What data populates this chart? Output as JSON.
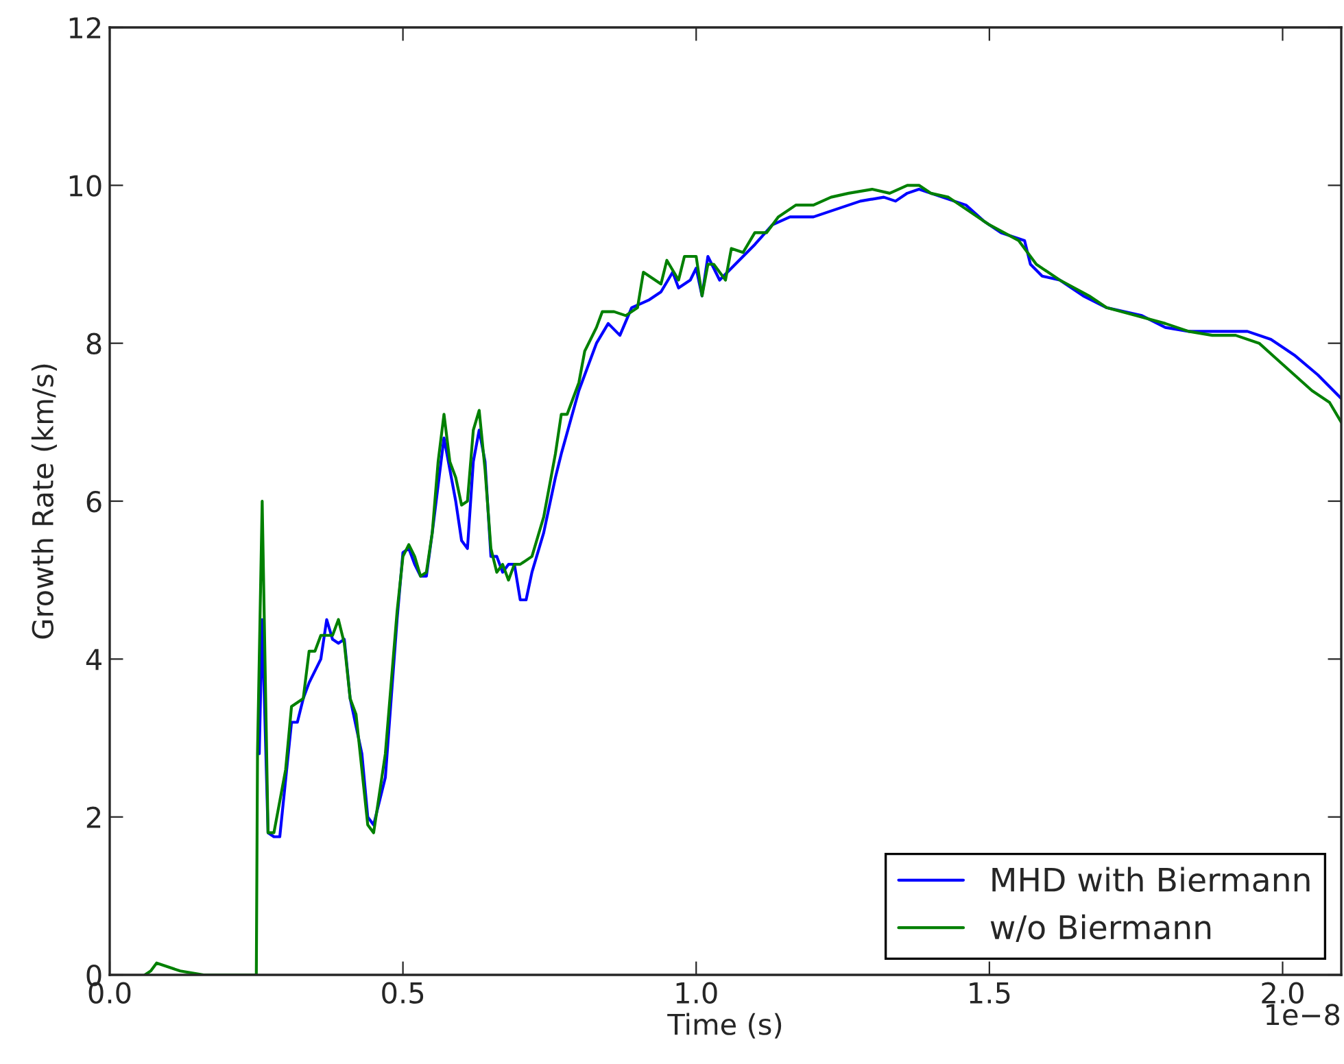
{
  "chart_data": {
    "type": "line",
    "xlabel": "Time (s)",
    "ylabel": "Growth Rate (km/s)",
    "annotations": [
      "1e−8"
    ],
    "xlim": [
      0,
      2.1
    ],
    "xticks": [
      {
        "value": 0,
        "label": "0.0"
      },
      0.5,
      {
        "value": 1.0,
        "label": "1.0"
      },
      1.5,
      {
        "value": 2.0,
        "label": "2.0"
      }
    ],
    "ylim": [
      0,
      12
    ],
    "yticks": [
      0,
      2,
      4,
      6,
      8,
      10,
      12
    ],
    "grid": false,
    "legend": "bottom right",
    "marker": "none",
    "line_style": "solid",
    "series": [
      {
        "name": "MHD with Biermann",
        "color": "#0000ff",
        "x": [
          0.255,
          0.26,
          0.27,
          0.28,
          0.29,
          0.31,
          0.32,
          0.33,
          0.34,
          0.36,
          0.37,
          0.38,
          0.39,
          0.4,
          0.41,
          0.43,
          0.44,
          0.45,
          0.47,
          0.49,
          0.5,
          0.51,
          0.52,
          0.53,
          0.54,
          0.55,
          0.57,
          0.58,
          0.59,
          0.6,
          0.61,
          0.62,
          0.63,
          0.64,
          0.65,
          0.66,
          0.67,
          0.68,
          0.69,
          0.7,
          0.71,
          0.72,
          0.74,
          0.76,
          0.77,
          0.8,
          0.83,
          0.85,
          0.87,
          0.89,
          0.92,
          0.94,
          0.96,
          0.97,
          0.99,
          1.0,
          1.01,
          1.02,
          1.04,
          1.06,
          1.08,
          1.1,
          1.13,
          1.16,
          1.2,
          1.24,
          1.28,
          1.32,
          1.34,
          1.36,
          1.38,
          1.42,
          1.46,
          1.49,
          1.52,
          1.56,
          1.57,
          1.59,
          1.62,
          1.66,
          1.7,
          1.73,
          1.76,
          1.8,
          1.84,
          1.9,
          1.94,
          1.98,
          2.02,
          2.06,
          2.1
        ],
        "values": [
          2.8,
          4.5,
          1.8,
          1.75,
          1.75,
          3.2,
          3.2,
          3.5,
          3.7,
          4.0,
          4.5,
          4.25,
          4.2,
          4.25,
          3.5,
          2.8,
          2.0,
          1.9,
          2.5,
          4.5,
          5.35,
          5.4,
          5.2,
          5.05,
          5.05,
          5.6,
          6.8,
          6.4,
          6.0,
          5.5,
          5.4,
          6.5,
          6.9,
          6.5,
          5.3,
          5.3,
          5.1,
          5.2,
          5.2,
          4.75,
          4.75,
          5.1,
          5.6,
          6.3,
          6.6,
          7.4,
          8.0,
          8.25,
          8.1,
          8.45,
          8.55,
          8.65,
          8.9,
          8.7,
          8.8,
          8.95,
          8.6,
          9.1,
          8.8,
          8.95,
          9.1,
          9.25,
          9.5,
          9.6,
          9.6,
          9.7,
          9.8,
          9.85,
          9.8,
          9.9,
          9.95,
          9.85,
          9.75,
          9.55,
          9.4,
          9.3,
          9.0,
          8.85,
          8.8,
          8.6,
          8.45,
          8.4,
          8.35,
          8.2,
          8.15,
          8.15,
          8.15,
          8.05,
          7.85,
          7.6,
          7.3
        ]
      },
      {
        "name": "w/o Biermann",
        "color": "#008000",
        "x": [
          0.06,
          0.07,
          0.08,
          0.12,
          0.16,
          0.25,
          0.252,
          0.26,
          0.27,
          0.28,
          0.3,
          0.31,
          0.33,
          0.34,
          0.35,
          0.36,
          0.38,
          0.39,
          0.4,
          0.41,
          0.42,
          0.43,
          0.44,
          0.45,
          0.47,
          0.49,
          0.5,
          0.51,
          0.52,
          0.53,
          0.54,
          0.55,
          0.56,
          0.57,
          0.58,
          0.59,
          0.6,
          0.61,
          0.62,
          0.63,
          0.64,
          0.65,
          0.66,
          0.67,
          0.68,
          0.69,
          0.7,
          0.72,
          0.74,
          0.76,
          0.77,
          0.78,
          0.8,
          0.81,
          0.83,
          0.84,
          0.86,
          0.88,
          0.9,
          0.91,
          0.92,
          0.94,
          0.95,
          0.97,
          0.98,
          1.0,
          1.01,
          1.02,
          1.03,
          1.05,
          1.06,
          1.08,
          1.1,
          1.12,
          1.14,
          1.17,
          1.2,
          1.23,
          1.26,
          1.3,
          1.33,
          1.36,
          1.38,
          1.4,
          1.43,
          1.46,
          1.5,
          1.55,
          1.58,
          1.62,
          1.67,
          1.7,
          1.75,
          1.8,
          1.84,
          1.88,
          1.92,
          1.96,
          1.99,
          2.02,
          2.05,
          2.08,
          2.1
        ],
        "values": [
          0,
          0.05,
          0.15,
          0.05,
          0,
          0,
          2.8,
          6.0,
          1.8,
          1.8,
          2.6,
          3.4,
          3.5,
          4.1,
          4.1,
          4.3,
          4.3,
          4.5,
          4.2,
          3.5,
          3.3,
          2.6,
          1.9,
          1.8,
          2.8,
          4.6,
          5.3,
          5.45,
          5.3,
          5.05,
          5.1,
          5.6,
          6.5,
          7.1,
          6.5,
          6.3,
          5.95,
          6.0,
          6.9,
          7.15,
          6.4,
          5.4,
          5.1,
          5.2,
          5.0,
          5.2,
          5.2,
          5.3,
          5.8,
          6.6,
          7.1,
          7.1,
          7.5,
          7.9,
          8.2,
          8.4,
          8.4,
          8.35,
          8.45,
          8.9,
          8.85,
          8.75,
          9.05,
          8.8,
          9.1,
          9.1,
          8.6,
          9.0,
          9.0,
          8.8,
          9.2,
          9.15,
          9.4,
          9.4,
          9.6,
          9.75,
          9.75,
          9.85,
          9.9,
          9.95,
          9.9,
          10.0,
          10.0,
          9.9,
          9.85,
          9.7,
          9.5,
          9.3,
          9.0,
          8.8,
          8.6,
          8.45,
          8.35,
          8.25,
          8.15,
          8.1,
          8.1,
          8.0,
          7.8,
          7.6,
          7.4,
          7.25,
          7.0
        ]
      }
    ]
  }
}
